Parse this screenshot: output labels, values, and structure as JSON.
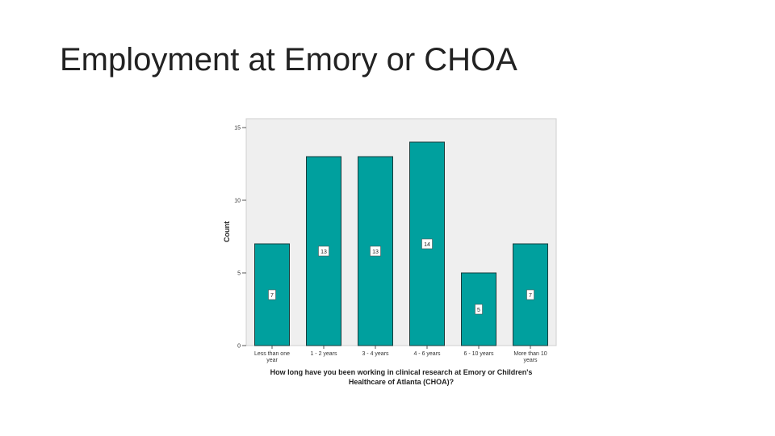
{
  "slide": {
    "title": "Employment at Emory or CHOA"
  },
  "chart_data": {
    "type": "bar",
    "categories": [
      "Less than one year",
      "1 - 2 years",
      "3 - 4 years",
      "4 - 6 years",
      "6 - 10 years",
      "More than 10 years"
    ],
    "values": [
      7,
      13,
      13,
      14,
      5,
      7
    ],
    "data_labels": [
      "7",
      "13",
      "13",
      "14",
      "5",
      "7"
    ],
    "xlabel": "How long have you been working in clinical research at Emory or Children's Healthcare of Atlanta (CHOA)?",
    "ylabel": "Count",
    "ylim": [
      0,
      15
    ],
    "yticks": [
      0,
      5,
      10,
      15
    ],
    "grid": false,
    "colors": {
      "bar": "#00a09e",
      "bar_edge": "#1a3d3c",
      "plot_background": "#efefef"
    }
  }
}
